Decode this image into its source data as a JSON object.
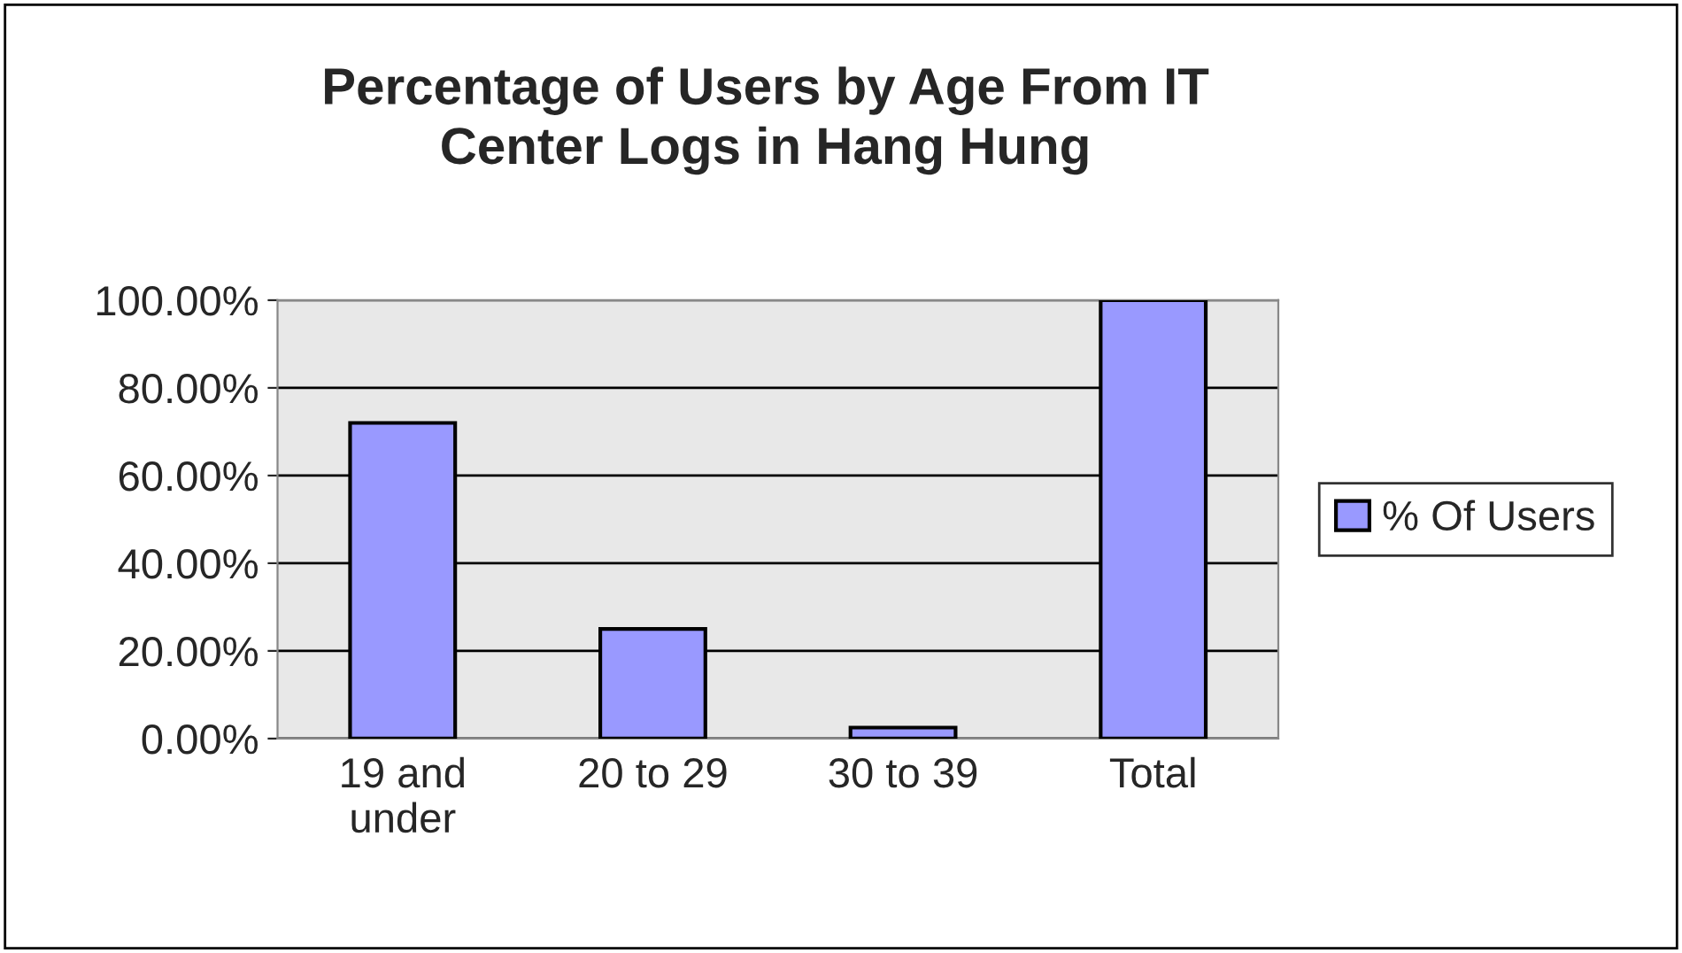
{
  "chart_data": {
    "type": "bar",
    "title": "Percentage of Users by Age From IT\nCenter Logs in Hang Hung",
    "categories": [
      "19 and\nunder",
      "20 to 29",
      "30 to 39",
      "Total"
    ],
    "series": [
      {
        "name": "% Of Users",
        "color": "#9999ff",
        "values": [
          72,
          25,
          2.5,
          100
        ]
      }
    ],
    "ylim": [
      0,
      100
    ],
    "yticks": [
      {
        "value": 0,
        "label": "0.00%"
      },
      {
        "value": 20,
        "label": "20.00%"
      },
      {
        "value": 40,
        "label": "40.00%"
      },
      {
        "value": 60,
        "label": "60.00%"
      },
      {
        "value": 80,
        "label": "80.00%"
      },
      {
        "value": 100,
        "label": "100.00%"
      }
    ],
    "grid": "y",
    "legend": "right"
  }
}
